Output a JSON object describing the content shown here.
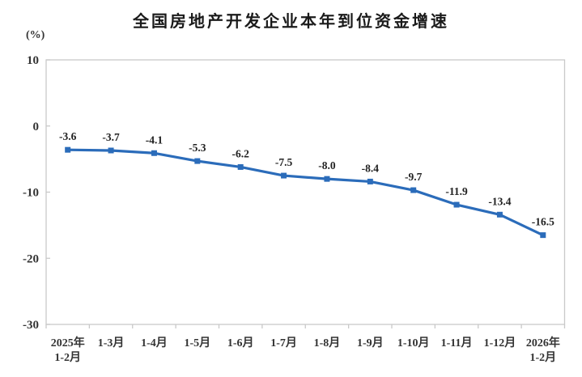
{
  "page": {
    "title": "全国房地产开发企业本年到位资金增速"
  },
  "chart_data": {
    "type": "line",
    "title": "全国房地产开发企业本年到位资金增速",
    "ylabel": "(%)",
    "categories": [
      "2025年\n1-2月",
      "1-3月",
      "1-4月",
      "1-5月",
      "1-6月",
      "1-7月",
      "1-8月",
      "1-9月",
      "1-10月",
      "1-11月",
      "1-12月",
      "2026年\n1-2月"
    ],
    "values": [
      -3.6,
      -3.7,
      -4.1,
      -5.3,
      -6.2,
      -7.5,
      -8.0,
      -8.4,
      -9.7,
      -11.9,
      -13.4,
      -16.5
    ],
    "ylim": [
      -30,
      10
    ],
    "yticks": [
      10,
      0,
      -10,
      -20,
      -30
    ],
    "grid": false,
    "legend": "none",
    "data_labels": true,
    "label_format": "0.0",
    "marker": "square",
    "colors": {
      "line": "#2b6cba",
      "marker": "#2b6cba",
      "axis": "#c9c9c9",
      "title_text": "#1a1a1a",
      "data_label_text": "#222222",
      "tick_text": "#333333"
    }
  }
}
